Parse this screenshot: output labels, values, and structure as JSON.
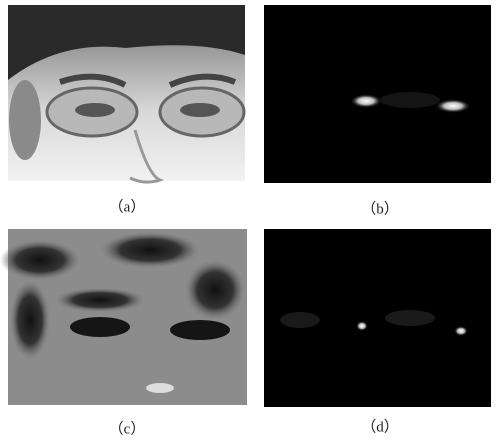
{
  "figure": {
    "panels": [
      {
        "caption": "（a）"
      },
      {
        "caption": "（b）"
      },
      {
        "caption": "（c）"
      },
      {
        "caption": "（d）"
      }
    ]
  }
}
